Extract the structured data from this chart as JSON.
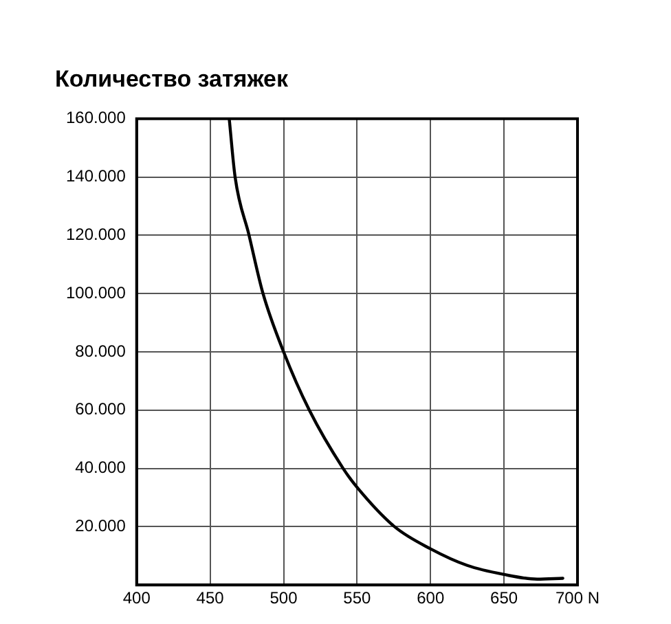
{
  "chart_data": {
    "type": "line",
    "title": "Количество затяжек",
    "x": [
      463,
      467,
      476.5,
      486,
      500,
      517.5,
      540.5,
      550,
      575.5,
      600,
      625,
      650,
      672.5,
      690
    ],
    "series": [
      {
        "color": "#000000",
        "values": [
          160000,
          140000,
          120000,
          100000,
          80000,
          60000,
          40000,
          33500,
          20000,
          12400,
          6700,
          3600,
          2000,
          2300
        ]
      }
    ],
    "xlim": [
      400,
      700
    ],
    "xticks": [
      400,
      450,
      500,
      550,
      600,
      650,
      {
        "value": 700,
        "label": "700 N"
      }
    ],
    "ylim": [
      0,
      160000
    ],
    "yticks": [
      {
        "value": 0,
        "label": null
      },
      {
        "value": 20000,
        "label": "20.000"
      },
      {
        "value": 40000,
        "label": "40.000"
      },
      {
        "value": 60000,
        "label": "60.000"
      },
      {
        "value": 80000,
        "label": "80.000"
      },
      {
        "value": 100000,
        "label": "100.000"
      },
      {
        "value": 120000,
        "label": "120.000"
      },
      {
        "value": 140000,
        "label": "140.000"
      },
      {
        "value": 160000,
        "label": "160.000"
      }
    ],
    "grid": true,
    "legend": false,
    "marker": "none",
    "line_style": "solid"
  }
}
